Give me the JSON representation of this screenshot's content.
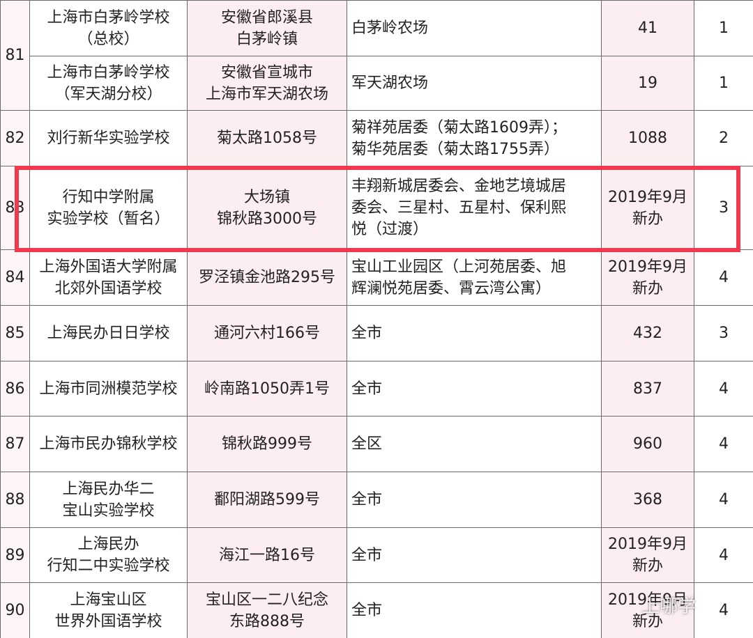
{
  "table": {
    "rows": [
      {
        "no": "81",
        "cells": [
          [
            "上海市白茅岭学校",
            "（总校）"
          ],
          [
            "安徽省郎溪县",
            "白茅岭镇"
          ],
          [
            "白茅岭农场"
          ],
          [
            "41"
          ],
          [
            "1"
          ]
        ]
      },
      {
        "cells": [
          [
            "上海市白茅岭学校",
            "（军天湖分校）"
          ],
          [
            "安徽省宣城市",
            "上海市军天湖农场"
          ],
          [
            "军天湖农场"
          ],
          [
            "19"
          ],
          [
            "1"
          ]
        ]
      },
      {
        "no": "82",
        "cells": [
          [
            "刘行新华实验学校"
          ],
          [
            "菊太路1058号"
          ],
          [
            "菊祥苑居委（菊太路1609弄）；",
            "菊华苑居委（菊太路1755弄）"
          ],
          [
            "1088"
          ],
          [
            "2"
          ]
        ]
      },
      {
        "no": "83",
        "cells": [
          [
            "行知中学附属",
            "实验学校（暂名）"
          ],
          [
            "大场镇",
            "锦秋路3000号"
          ],
          [
            "丰翔新城居委会、金地艺境城居",
            "委会、三星村、五星村、保利熙",
            "悦（过渡）"
          ],
          [
            "2019年9月",
            "新办"
          ],
          [
            "3"
          ]
        ]
      },
      {
        "no": "84",
        "cells": [
          [
            "上海外国语大学附属",
            "北郊外国语学校"
          ],
          [
            "罗泾镇金池路295号"
          ],
          [
            "宝山工业园区（上河苑居委、旭",
            "辉澜悦苑居委、霄云湾公寓）"
          ],
          [
            "2019年9月",
            "新办"
          ],
          [
            "4"
          ]
        ]
      },
      {
        "no": "85",
        "cells": [
          [
            "上海民办日日学校"
          ],
          [
            "通河六村166号"
          ],
          [
            "全市"
          ],
          [
            "432"
          ],
          [
            "3"
          ]
        ]
      },
      {
        "no": "86",
        "cells": [
          [
            "上海市同洲模范学校"
          ],
          [
            "岭南路1050弄1号"
          ],
          [
            "全市"
          ],
          [
            "837"
          ],
          [
            "4"
          ]
        ]
      },
      {
        "no": "87",
        "cells": [
          [
            "上海市民办锦秋学校"
          ],
          [
            "锦秋路999号"
          ],
          [
            "全区"
          ],
          [
            "960"
          ],
          [
            "4"
          ]
        ]
      },
      {
        "no": "88",
        "cells": [
          [
            "上海民办华二",
            "宝山实验学校"
          ],
          [
            "鄱阳湖路599号"
          ],
          [
            "全市"
          ],
          [
            "368"
          ],
          [
            "4"
          ]
        ]
      },
      {
        "no": "89",
        "cells": [
          [
            "上海民办",
            "行知二中实验学校"
          ],
          [
            "海江一路16号"
          ],
          [
            "全市"
          ],
          [
            "2019年9月",
            "新办"
          ],
          [
            "4"
          ]
        ]
      },
      {
        "no": "90",
        "cells": [
          [
            "上海宝山区",
            "世界外国语学校"
          ],
          [
            "宝山区一二八纪念",
            "东路888号"
          ],
          [
            "全市"
          ],
          [
            "2019年9月",
            "新办"
          ],
          [
            "4"
          ]
        ]
      }
    ]
  },
  "watermark": "上哪学"
}
